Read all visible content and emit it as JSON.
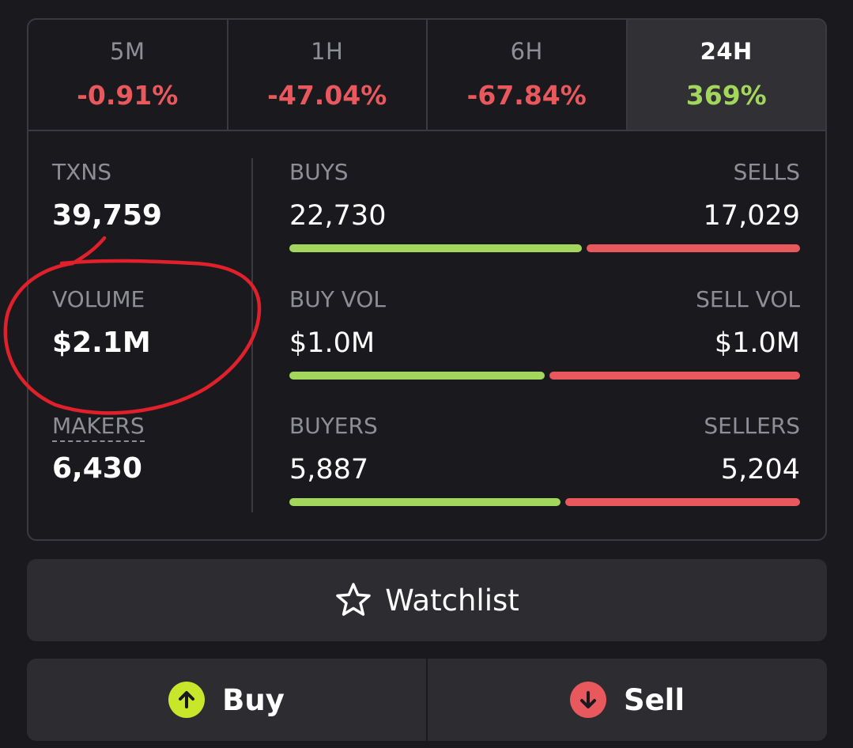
{
  "tabs": [
    {
      "label": "5M",
      "change": "-0.91%",
      "trend": "down"
    },
    {
      "label": "1H",
      "change": "-47.04%",
      "trend": "down"
    },
    {
      "label": "6H",
      "change": "-67.84%",
      "trend": "down"
    },
    {
      "label": "24H",
      "change": "369%",
      "trend": "up",
      "active": true
    }
  ],
  "stats": {
    "txns": {
      "label": "TXNS",
      "value": "39,759"
    },
    "volume": {
      "label": "VOLUME",
      "value": "$2.1M"
    },
    "makers": {
      "label": "MAKERS",
      "value": "6,430"
    }
  },
  "rows": {
    "txns": {
      "buy_label": "BUYS",
      "sell_label": "SELLS",
      "buy_value": "22,730",
      "sell_value": "17,029",
      "buy_fraction": 0.572
    },
    "volume": {
      "buy_label": "BUY VOL",
      "sell_label": "SELL VOL",
      "buy_value": "$1.0M",
      "sell_value": "$1.0M",
      "buy_fraction": 0.5
    },
    "makers": {
      "buy_label": "BUYERS",
      "sell_label": "SELLERS",
      "buy_value": "5,887",
      "sell_value": "5,204",
      "buy_fraction": 0.531
    }
  },
  "buttons": {
    "watchlist": "Watchlist",
    "buy": "Buy",
    "sell": "Sell"
  },
  "icons": {
    "watchlist": "star-outline-icon",
    "buy": "arrow-up-circle-icon",
    "sell": "arrow-down-circle-icon"
  },
  "colors": {
    "positive": "#a3d65c",
    "negative": "#e8585c",
    "buy_icon": "#c8e62a",
    "sell_icon": "#e8585c",
    "annotation": "#e0202a"
  }
}
